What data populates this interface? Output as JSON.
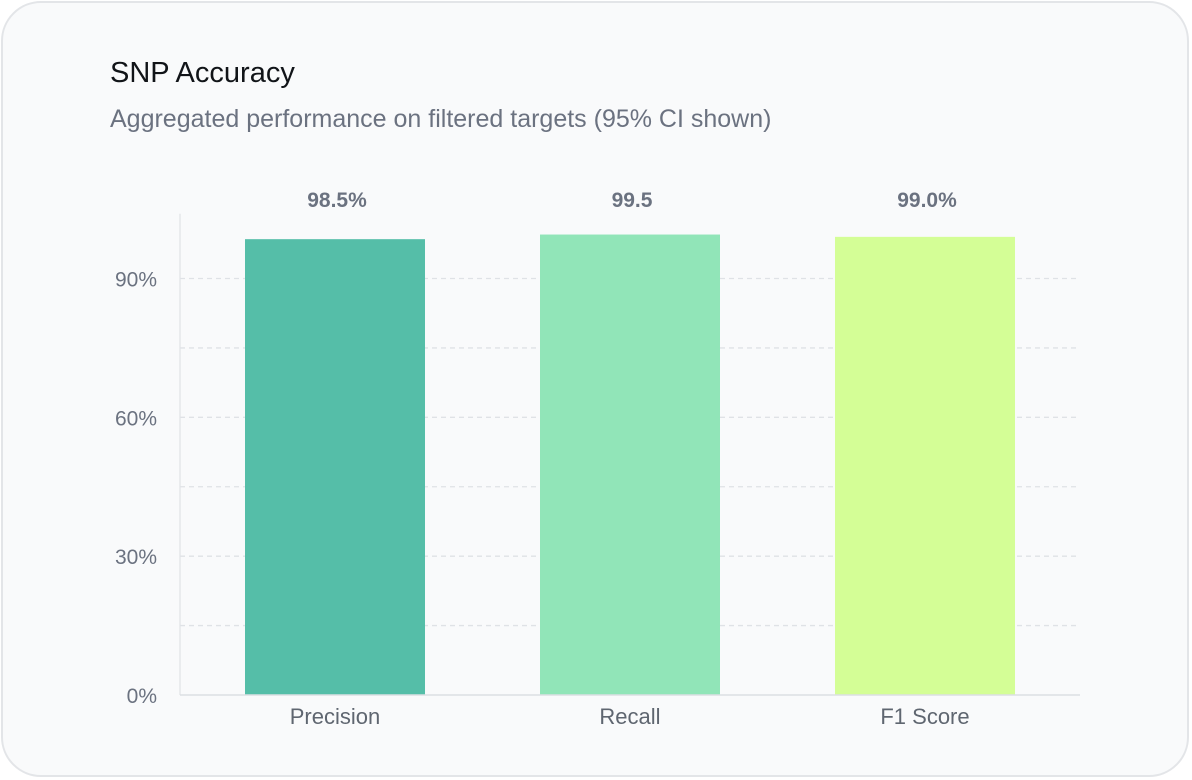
{
  "chart_data": {
    "type": "bar",
    "title": "SNP Accuracy",
    "subtitle": "Aggregated performance on filtered targets (95% CI shown)",
    "categories": [
      "Precision",
      "Recall",
      "F1 Score"
    ],
    "values": [
      98.5,
      99.5,
      99.0
    ],
    "value_labels": [
      "98.5%",
      "99.5",
      "99.0%"
    ],
    "colors": [
      "#55bea8",
      "#91e5b8",
      "#d4fe96"
    ],
    "ylim": [
      0,
      104
    ],
    "yticks": [
      0,
      30,
      60,
      90
    ],
    "ytick_labels": [
      "0%",
      "30%",
      "60%",
      "90%"
    ],
    "grid": true,
    "xlabel": "",
    "ylabel": ""
  }
}
